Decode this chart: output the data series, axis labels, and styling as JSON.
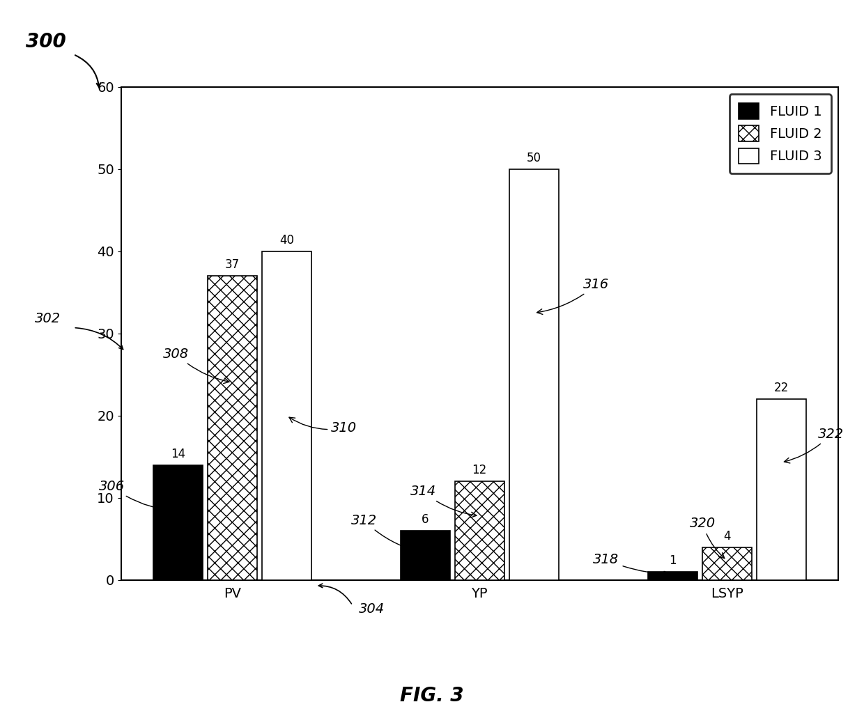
{
  "categories": [
    "PV",
    "YP",
    "LSYP"
  ],
  "fluid1_values": [
    14,
    6,
    1
  ],
  "fluid2_values": [
    37,
    12,
    4
  ],
  "fluid3_values": [
    40,
    50,
    22
  ],
  "fluid1_color": "#000000",
  "fluid2_color": "#ffffff",
  "fluid3_color": "#ffffff",
  "fluid2_hatch": "xx",
  "fluid3_hatch": "",
  "legend_labels": [
    "FLUID 1",
    "FLUID 2",
    "FLUID 3"
  ],
  "ylim": [
    0,
    60
  ],
  "yticks": [
    0,
    10,
    20,
    30,
    40,
    50,
    60
  ],
  "bar_label_fontsize": 12,
  "annotation_fontsize": 14,
  "legend_fontsize": 14,
  "axis_tick_fontsize": 14,
  "background_color": "#ffffff",
  "plot_bg_color": "#ffffff"
}
